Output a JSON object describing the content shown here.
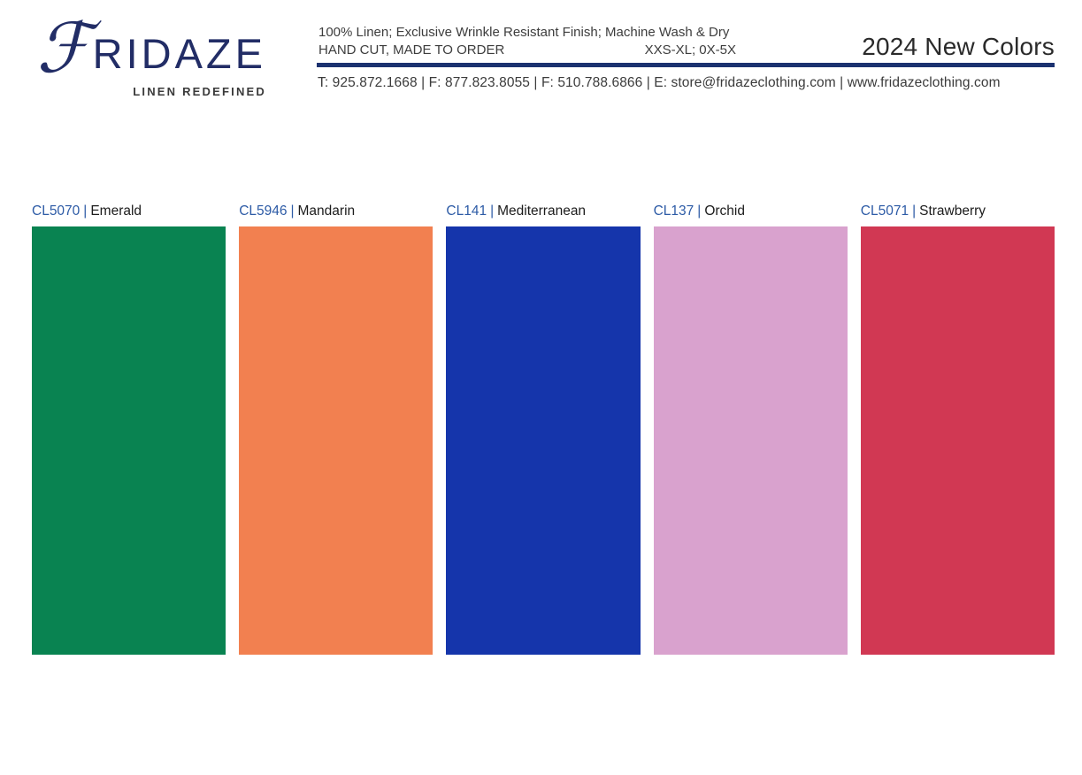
{
  "header": {
    "logo": {
      "brand_initial": "ℱ",
      "brand_rest": "RIDAZE",
      "tagline": "LINEN REDEFINED"
    },
    "product_info": {
      "line1": "100% Linen; Exclusive Wrinkle Resistant Finish; Machine Wash & Dry",
      "line2_left": "HAND CUT, MADE TO ORDER",
      "line2_right": "XXS-XL; 0X-5X"
    },
    "title": "2024 New Colors",
    "contact": "T: 925.872.1668 | F: 877.823.8055 | F: 510.788.6866 | E: store@fridazeclothing.com | www.fridazeclothing.com"
  },
  "colors": {
    "navy": "#222d66",
    "rule_navy": "#1b3270",
    "code_blue": "#2d5ba6"
  },
  "swatches": [
    {
      "code": "CL5070",
      "separator": "|",
      "name": "Emerald",
      "hex": "#098351"
    },
    {
      "code": "CL5946",
      "separator": "|",
      "name": "Mandarin",
      "hex": "#F28050"
    },
    {
      "code": "CL141",
      "separator": "|",
      "name": "Mediterranean",
      "hex": "#1535AB"
    },
    {
      "code": "CL137",
      "separator": "|",
      "name": "Orchid",
      "hex": "#D9A2CE"
    },
    {
      "code": "CL5071",
      "separator": "|",
      "name": "Strawberry",
      "hex": "#D13853"
    }
  ]
}
